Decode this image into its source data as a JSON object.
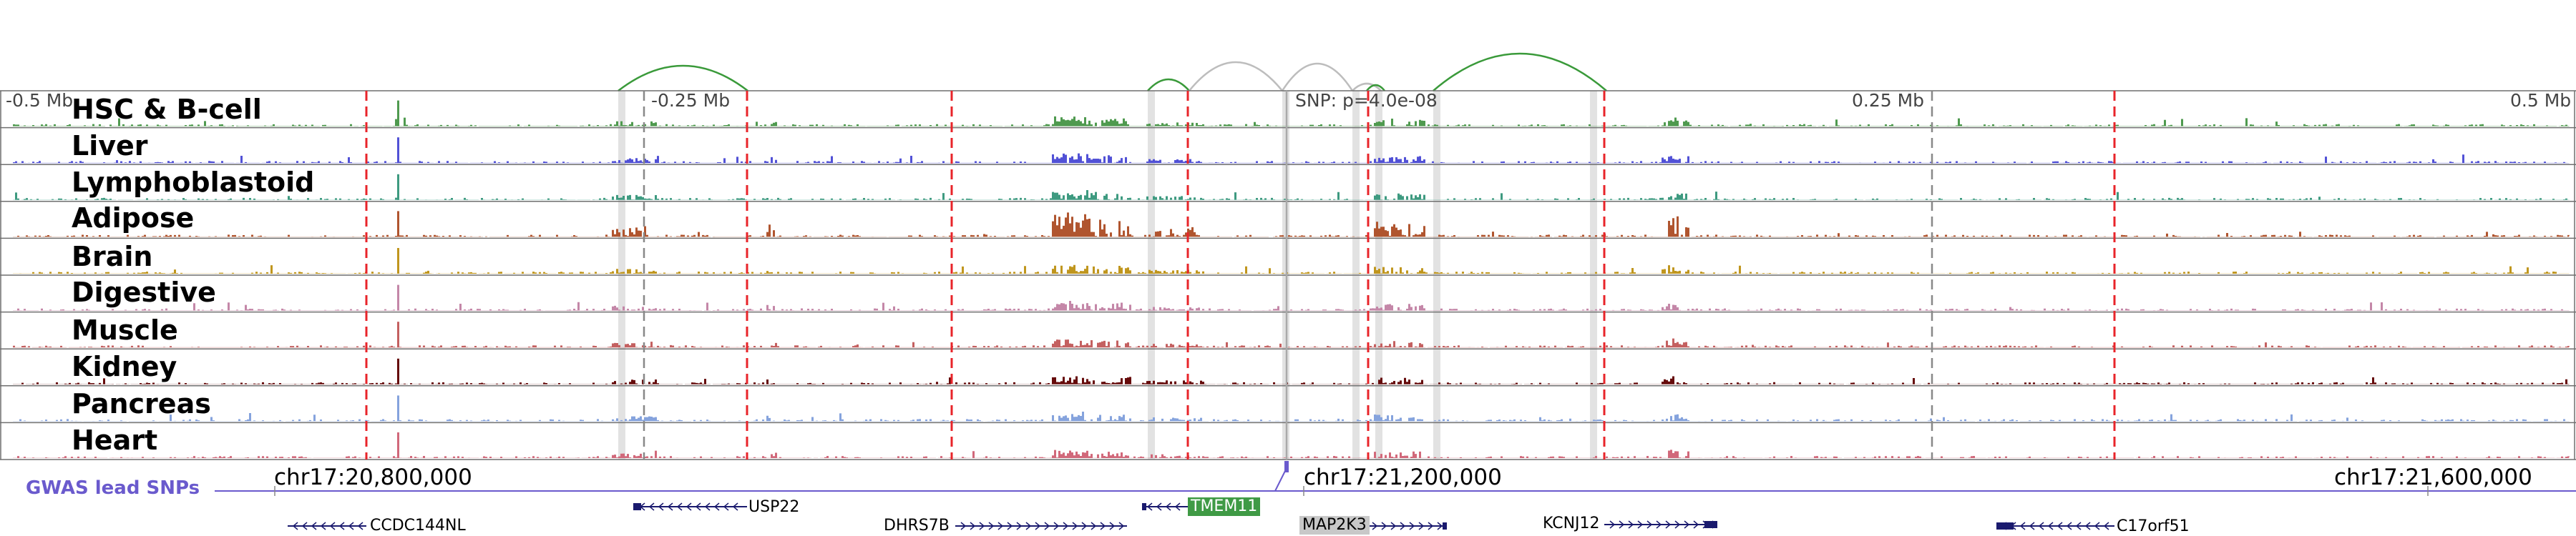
{
  "tracks": [
    {
      "label": "HSC & B-cell",
      "color": "#4f9a4f"
    },
    {
      "label": "Liver",
      "color": "#5151d6"
    },
    {
      "label": "Lymphoblastoid",
      "color": "#3e9a80"
    },
    {
      "label": "Adipose",
      "color": "#b0552f"
    },
    {
      "label": "Brain",
      "color": "#c0961e"
    },
    {
      "label": "Digestive",
      "color": "#c487a8"
    },
    {
      "label": "Muscle",
      "color": "#c46060"
    },
    {
      "label": "Kidney",
      "color": "#660b0b"
    },
    {
      "label": "Pancreas",
      "color": "#85a3dd"
    },
    {
      "label": "Heart",
      "color": "#d1687a"
    }
  ],
  "scale_labels": [
    "-0.5 Mb",
    "-0.25 Mb",
    "0.25 Mb",
    "0.5 Mb"
  ],
  "snp_label": "SNP: p=4.0e-08",
  "coordinates": [
    "chr17:20,800,000",
    "chr17:21,200,000",
    "chr17:21,600,000"
  ],
  "gwas_label": "GWAS lead SNPs",
  "genes": [
    {
      "name": "CCDC144NL",
      "strand": "-",
      "highlight": ""
    },
    {
      "name": "USP22",
      "strand": "-",
      "highlight": ""
    },
    {
      "name": "DHRS7B",
      "strand": "+",
      "highlight": ""
    },
    {
      "name": "TMEM11",
      "strand": "-",
      "highlight": "#3f9a45"
    },
    {
      "name": "MAP2K3",
      "strand": "+",
      "highlight": "#c8c8c8"
    },
    {
      "name": "KCNJ12",
      "strand": "+",
      "highlight": ""
    },
    {
      "name": "C17orf51",
      "strand": "-",
      "highlight": ""
    }
  ],
  "colors": {
    "red_marker": "#e8242a",
    "arc_green": "#3a9a3a",
    "arc_gray": "#bdbdbd",
    "gene_body": "#1a1a6e",
    "gwas": "#6a5acd"
  }
}
